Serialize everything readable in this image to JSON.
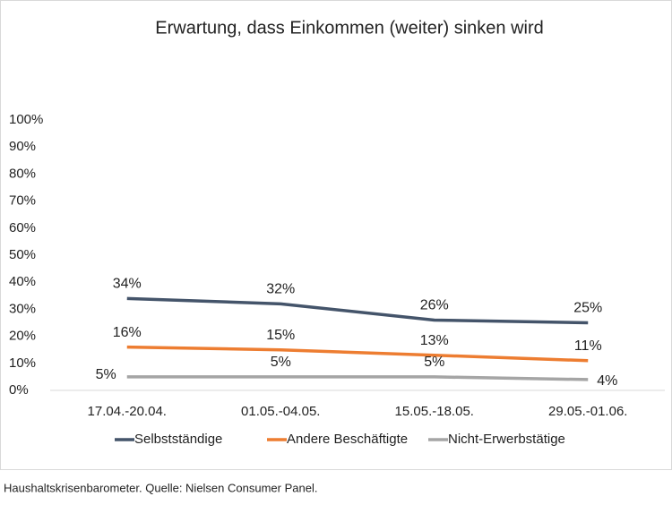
{
  "chart_data": {
    "type": "line",
    "title": "Erwartung, dass Einkommen (weiter) sinken wird",
    "categories": [
      "17.04.-20.04.",
      "01.05.-04.05.",
      "15.05.-18.05.",
      "29.05.-01.06."
    ],
    "series": [
      {
        "name": "Selbstständige",
        "color": "#44546a",
        "values": [
          34,
          32,
          26,
          25
        ],
        "value_labels": [
          "34%",
          "32%",
          "26%",
          "25%"
        ]
      },
      {
        "name": "Andere Beschäftigte",
        "color": "#ed7d31",
        "values": [
          16,
          15,
          13,
          11
        ],
        "value_labels": [
          "16%",
          "15%",
          "13%",
          "11%"
        ]
      },
      {
        "name": "Nicht-Erwerbstätige",
        "color": "#a5a5a5",
        "values": [
          5,
          5,
          5,
          4
        ],
        "value_labels": [
          "5%",
          "5%",
          "5%",
          "4%"
        ]
      }
    ],
    "ylim": [
      0,
      100
    ],
    "yticks": [
      {
        "value": 0,
        "label": "0%"
      },
      {
        "value": 10,
        "label": "10%"
      },
      {
        "value": 20,
        "label": "20%"
      },
      {
        "value": 30,
        "label": "30%"
      },
      {
        "value": 40,
        "label": "40%"
      },
      {
        "value": 50,
        "label": "50%"
      },
      {
        "value": 60,
        "label": "60%"
      },
      {
        "value": 70,
        "label": "70%"
      },
      {
        "value": 80,
        "label": "80%"
      },
      {
        "value": 90,
        "label": "90%"
      },
      {
        "value": 100,
        "label": "100%"
      }
    ],
    "grid": false,
    "legend": "bottom",
    "source": "Haushaltskrisenbarometer. Quelle: Nielsen Consumer Panel."
  }
}
